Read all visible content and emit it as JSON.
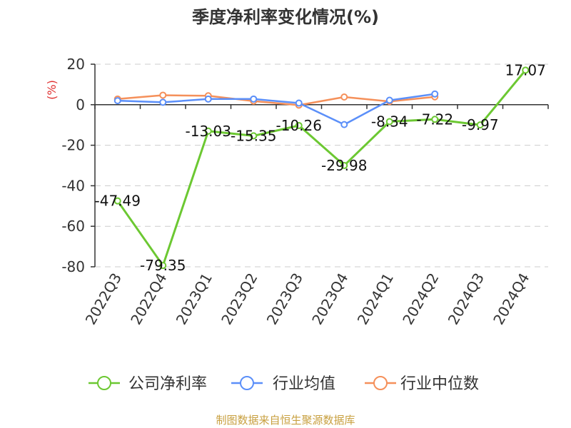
{
  "chart_data": {
    "type": "line",
    "title": "季度净利率变化情况(%)",
    "ylabel": "(%)",
    "categories": [
      "2022Q3",
      "2022Q4",
      "2023Q1",
      "2023Q2",
      "2023Q3",
      "2023Q4",
      "2024Q1",
      "2024Q2",
      "2024Q3",
      "2024Q4"
    ],
    "ylim": [
      -80,
      20
    ],
    "yticks": [
      20,
      0,
      -20,
      -40,
      -60,
      -80
    ],
    "grid": true,
    "legend_position": "bottom",
    "series": [
      {
        "name": "公司净利率",
        "color": "#6cc832",
        "values": [
          -47.49,
          -79.35,
          -13.03,
          -15.35,
          -10.26,
          -29.98,
          -8.34,
          -7.22,
          -9.97,
          17.07
        ],
        "labels": [
          "-47.49",
          "-79.35",
          "-13.03",
          "-15.35",
          "-10.26",
          "-29.98",
          "-8.34",
          "-7.22",
          "-9.97",
          "17.07"
        ]
      },
      {
        "name": "行业均值",
        "color": "#5b8ff9",
        "values": [
          2.0,
          1.2,
          2.8,
          2.8,
          0.8,
          -9.8,
          2.2,
          5.3,
          null,
          null
        ]
      },
      {
        "name": "行业中位数",
        "color": "#f5905a",
        "values": [
          2.8,
          4.7,
          4.4,
          1.8,
          -0.2,
          3.8,
          1.6,
          3.9,
          null,
          null
        ]
      }
    ],
    "source": "制图数据来自恒生聚源数据库"
  }
}
